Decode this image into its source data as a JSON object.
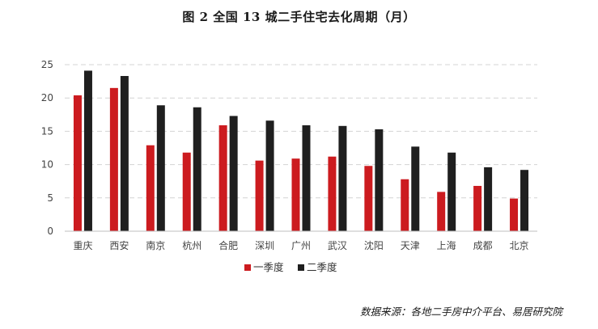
{
  "title": "图 2   全国 13 城二手住宅去化周期（月）",
  "source": "数据来源：各地二手房中介平台、易居研究院",
  "colors": {
    "series1": "#cc1b1f",
    "series2": "#1f1f1f",
    "grid": "#d4d4d4",
    "axis": "#bfbfbf"
  },
  "chart_data": {
    "type": "bar",
    "categories": [
      "重庆",
      "西安",
      "南京",
      "杭州",
      "合肥",
      "深圳",
      "广州",
      "武汉",
      "沈阳",
      "天津",
      "上海",
      "成都",
      "北京"
    ],
    "series": [
      {
        "name": "一季度",
        "values": [
          20.4,
          21.5,
          12.9,
          11.8,
          15.9,
          10.6,
          10.9,
          11.2,
          9.8,
          7.8,
          5.9,
          6.8,
          4.9
        ]
      },
      {
        "name": "二季度",
        "values": [
          24.1,
          23.3,
          18.9,
          18.6,
          17.3,
          16.6,
          15.9,
          15.8,
          15.3,
          12.7,
          11.8,
          9.6,
          9.2
        ]
      }
    ],
    "ylim": [
      0,
      25
    ],
    "yticks": [
      0,
      5,
      10,
      15,
      20,
      25
    ],
    "grid": true,
    "legend": "bottom-center"
  }
}
